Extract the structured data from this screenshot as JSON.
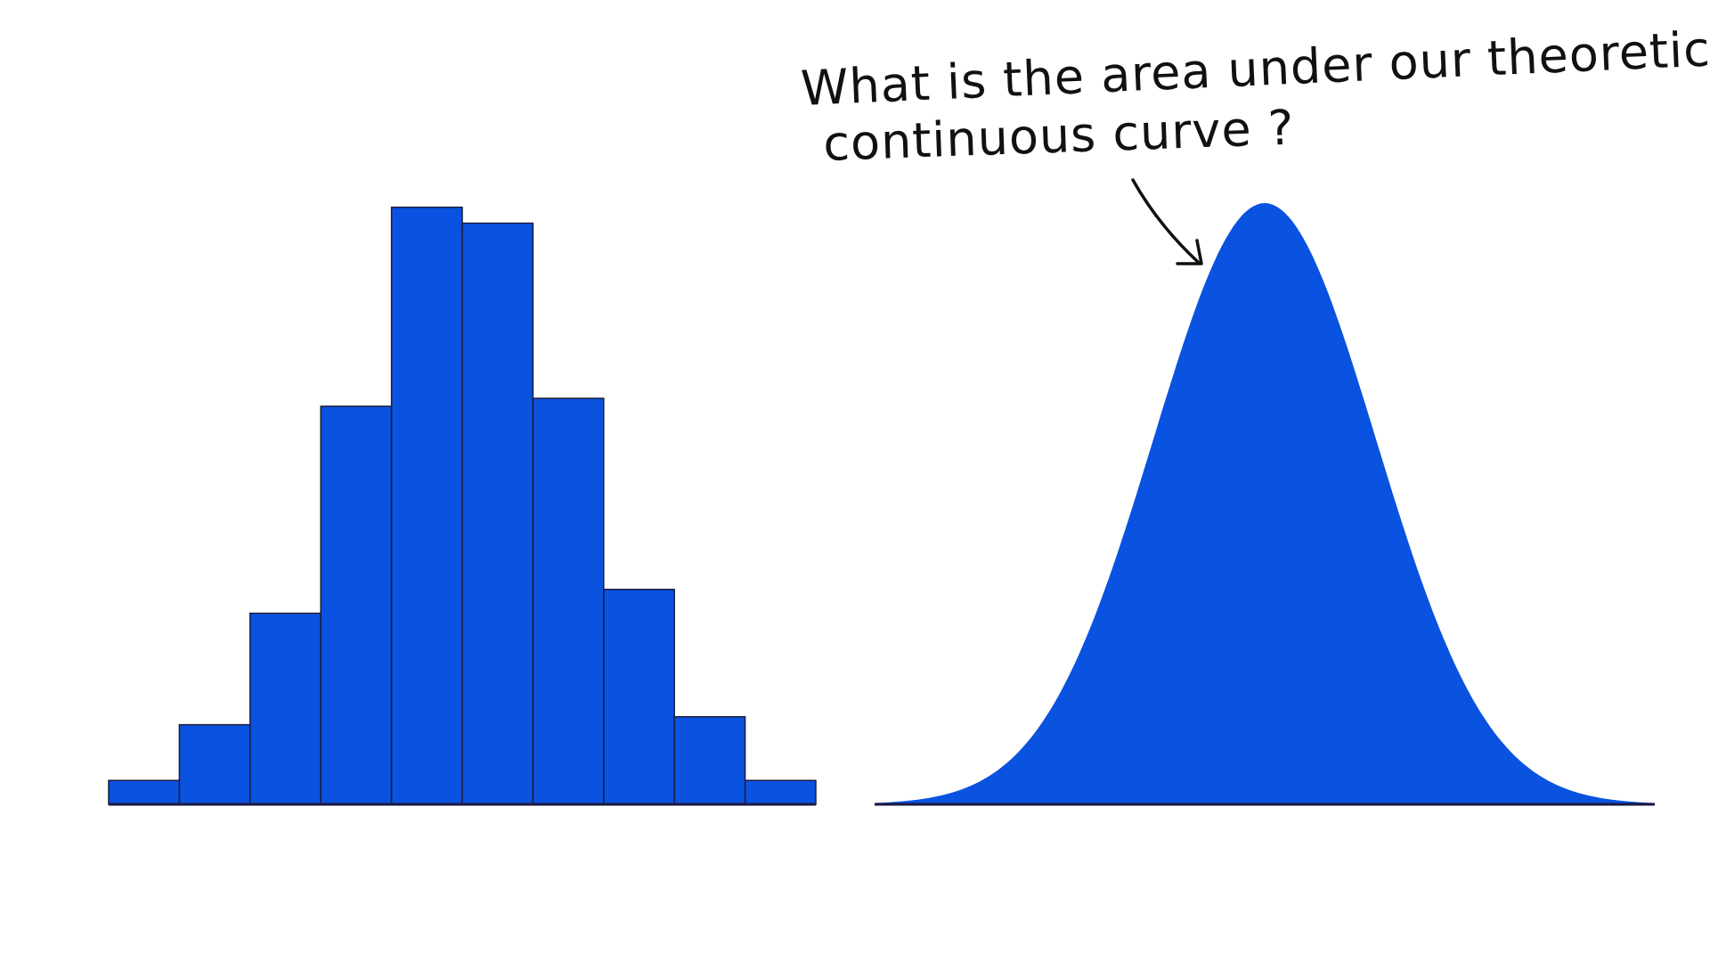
{
  "colors": {
    "fill": "#0a52e0",
    "background": "#ffffff",
    "ink": "#111111"
  },
  "annotation": {
    "line1": "What is the area under our theoretical",
    "line2": "continuous curve ?"
  },
  "chart_data": [
    {
      "type": "bar",
      "title": "",
      "xlabel": "",
      "ylabel": "",
      "categories": [
        "",
        "",
        "",
        "",
        "",
        "",
        "",
        "",
        "",
        ""
      ],
      "values": [
        3,
        10,
        24,
        50,
        75,
        73,
        51,
        27,
        11,
        3
      ],
      "ylim": [
        0,
        80
      ],
      "grid": false,
      "axes_visible": false
    },
    {
      "type": "area",
      "title": "",
      "xlabel": "",
      "ylabel": "",
      "distribution": "normal",
      "x": [
        -3.5,
        -3,
        -2.5,
        -2,
        -1.5,
        -1,
        -0.5,
        0,
        0.5,
        1,
        1.5,
        2,
        2.5,
        3,
        3.5
      ],
      "values": [
        0.002,
        0.011,
        0.044,
        0.135,
        0.325,
        0.607,
        0.882,
        1.0,
        0.882,
        0.607,
        0.325,
        0.135,
        0.044,
        0.011,
        0.002
      ],
      "ylim": [
        0,
        1.05
      ],
      "grid": false,
      "axes_visible": false
    }
  ]
}
